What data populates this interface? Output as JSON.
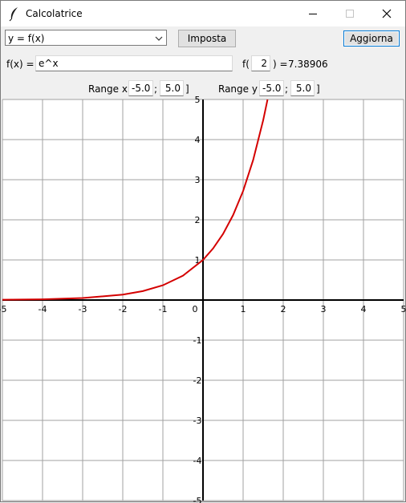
{
  "window": {
    "title": "Calcolatrice"
  },
  "controls": {
    "mode_selected": "y = f(x)",
    "set_button": "Imposta",
    "refresh_button": "Aggiorna"
  },
  "function_row": {
    "label": "f(x) =",
    "expression": "e^x",
    "eval_prefix": "f(",
    "eval_arg": "2",
    "eval_suffix": ") =",
    "eval_result": "7.38906"
  },
  "range_row": {
    "x_label": "Range x [",
    "x_min": "-5.0",
    "x_max": "5.0",
    "y_label": "Range y [",
    "y_min": "-5.0",
    "y_max": "5.0",
    "separator": ";",
    "close": "]"
  },
  "colors": {
    "curve": "#d40000",
    "grid": "#a0a0a0",
    "axis": "#000000"
  },
  "chart_data": {
    "type": "line",
    "title": "",
    "xlabel": "",
    "ylabel": "",
    "xlim": [
      -5,
      5
    ],
    "ylim": [
      -5,
      5
    ],
    "grid": true,
    "x_ticks": [
      -5,
      -4,
      -3,
      -2,
      -1,
      0,
      1,
      2,
      3,
      4,
      5
    ],
    "y_ticks": [
      -5,
      -4,
      -3,
      -2,
      -1,
      1,
      2,
      3,
      4,
      5
    ],
    "series": [
      {
        "x": [
          -5,
          -4,
          -3,
          -2,
          -1.5,
          -1,
          -0.5,
          0,
          0.25,
          0.5,
          0.75,
          1,
          1.25,
          1.5,
          1.609
        ],
        "y": [
          0.0067,
          0.0183,
          0.0498,
          0.1353,
          0.2231,
          0.3679,
          0.6065,
          1,
          1.284,
          1.6487,
          2.117,
          2.7183,
          3.4903,
          4.4817,
          5.0
        ]
      }
    ]
  }
}
